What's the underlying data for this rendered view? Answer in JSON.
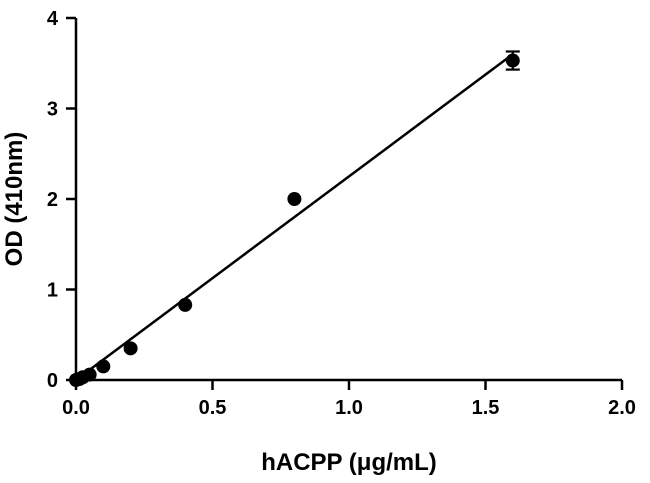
{
  "chart_data": {
    "type": "scatter",
    "title": "",
    "xlabel": "hACPP (μg/mL)",
    "ylabel": "OD (410nm)",
    "xlim": [
      0,
      2.0
    ],
    "ylim": [
      0,
      4
    ],
    "xticks": [
      0.0,
      0.5,
      1.0,
      1.5,
      2.0
    ],
    "xtick_labels": [
      "0.0",
      "0.5",
      "1.0",
      "1.5",
      "2.0"
    ],
    "yticks": [
      0,
      1,
      2,
      3,
      4
    ],
    "ytick_labels": [
      "0",
      "1",
      "2",
      "3",
      "4"
    ],
    "grid": false,
    "legend": "none",
    "series": [
      {
        "x": [
          0.0,
          0.0125,
          0.025,
          0.05,
          0.1,
          0.2,
          0.4,
          0.8,
          1.6
        ],
        "y": [
          0.0,
          0.01,
          0.03,
          0.06,
          0.15,
          0.35,
          0.83,
          2.0,
          3.53
        ],
        "yerr": [
          0,
          0,
          0,
          0,
          0,
          0,
          0,
          0,
          0.1
        ]
      }
    ],
    "fit_line": {
      "x": [
        0.0,
        1.6
      ],
      "y": [
        0.0,
        3.6
      ]
    }
  }
}
